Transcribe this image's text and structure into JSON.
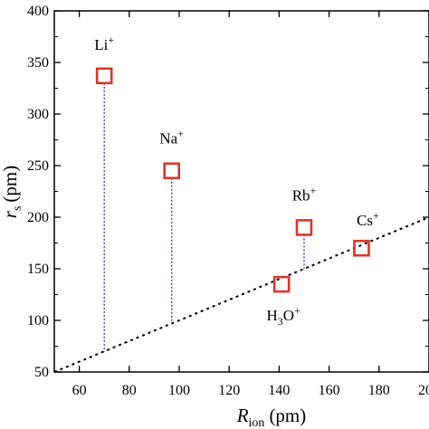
{
  "chart_data": {
    "type": "scatter",
    "title": "",
    "xlabel": {
      "main": "R",
      "sub": "ion",
      "unit": "(pm)"
    },
    "ylabel": {
      "main": "r",
      "sub": "s",
      "unit": "(pm)"
    },
    "xlim": [
      50,
      200
    ],
    "ylim": [
      50,
      400
    ],
    "x_ticks": [
      60,
      80,
      100,
      120,
      140,
      160,
      180,
      200
    ],
    "y_ticks": [
      50,
      100,
      150,
      200,
      250,
      300,
      350,
      400
    ],
    "grid": false,
    "legend": "none",
    "points": [
      {
        "label_main": "Li",
        "label_sup": "+",
        "x": 70,
        "y": 337
      },
      {
        "label_main": "Na",
        "label_sup": "+",
        "x": 97,
        "y": 245
      },
      {
        "label_main": "Rb",
        "label_sup": "+",
        "x": 150,
        "y": 190
      },
      {
        "label_main": "Cs",
        "label_sup": "+",
        "x": 173,
        "y": 170
      },
      {
        "label_main": "H",
        "label_sub": "3",
        "label_main2": "O",
        "label_sup": "+",
        "x": 141,
        "y": 135
      }
    ],
    "dashed_line": {
      "x": [
        50,
        200
      ],
      "y": [
        50,
        200
      ]
    },
    "marker_color": "#d9372b",
    "connector_color": "#2e3ca8"
  }
}
